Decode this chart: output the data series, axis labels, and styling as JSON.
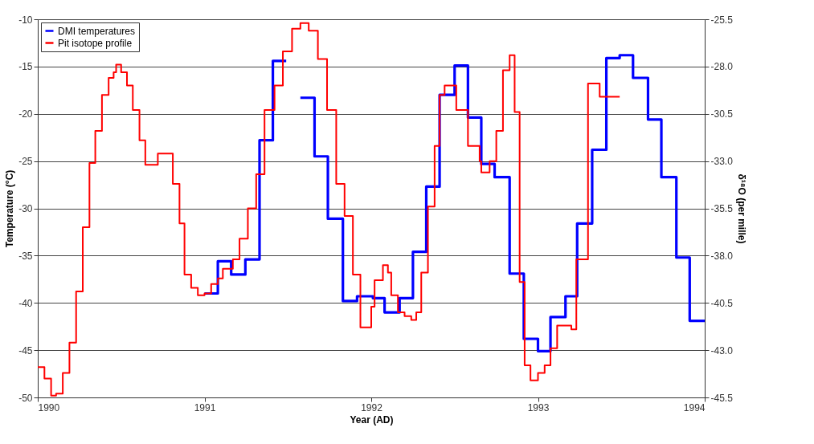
{
  "chart_data": {
    "type": "step",
    "xlabel": "Year (AD)",
    "ylabel": "Temperature (°C)",
    "y2label": "δ¹⁸O (per mille)",
    "xlim": [
      1990,
      1994
    ],
    "xticks": [
      1990,
      1991,
      1992,
      1993,
      1994
    ],
    "ylim": [
      -50,
      -10
    ],
    "yticks": [
      -50,
      -45,
      -40,
      -35,
      -30,
      -25,
      -20,
      -15,
      -10
    ],
    "y2lim": [
      -45.5,
      -25.5
    ],
    "y2ticks": [
      -45.5,
      {
        "value": -43,
        "label": "-43.0"
      },
      -40.5,
      {
        "value": -38,
        "label": "-38.0"
      },
      -35.5,
      {
        "value": -33,
        "label": "-33.0"
      },
      -30.5,
      {
        "value": -28,
        "label": "-28.0"
      },
      -25.5
    ],
    "grid": "y",
    "legend": "top left",
    "series": [
      {
        "name": "DMI temperatures",
        "color": "#0000ff",
        "x": [
          1991.0,
          1991.08,
          1991.16,
          1991.245,
          1991.33,
          1991.41,
          1991.49,
          1991.53,
          1991.575,
          1991.66,
          1991.74,
          1991.83,
          1991.915,
          1992.01,
          1992.08,
          1992.17,
          1992.25,
          1992.33,
          1992.41,
          1992.5,
          1992.58,
          1992.66,
          1992.74,
          1992.83,
          1992.915,
          1993.0,
          1993.075,
          1993.165,
          1993.235,
          1993.325,
          1993.41,
          1993.49,
          1993.57,
          1993.66,
          1993.74,
          1993.83,
          1993.91,
          1994.0
        ],
        "values": [
          -39.0,
          -35.6,
          -37.0,
          -35.4,
          -22.8,
          -14.4,
          -14.4,
          null,
          -18.3,
          -24.5,
          -31.1,
          -39.8,
          -39.3,
          -39.5,
          -41.0,
          -39.5,
          -34.6,
          -27.7,
          -18.0,
          -14.9,
          -20.4,
          -25.3,
          -26.7,
          -36.9,
          -43.8,
          -45.1,
          -41.5,
          -39.3,
          -31.6,
          -23.8,
          -14.1,
          -13.8,
          -16.2,
          -20.6,
          -26.7,
          -35.2,
          -41.9,
          -41.9
        ]
      },
      {
        "name": "Pit isotope profile",
        "color": "#ff0000",
        "axis": "y2",
        "x": [
          1990.0,
          1990.04,
          1990.08,
          1990.11,
          1990.15,
          1990.19,
          1990.23,
          1990.27,
          1990.31,
          1990.345,
          1990.385,
          1990.425,
          1990.455,
          1990.47,
          1990.5,
          1990.535,
          1990.57,
          1990.61,
          1990.645,
          1990.72,
          1990.81,
          1990.85,
          1990.88,
          1990.92,
          1990.96,
          1991.0,
          1991.04,
          1991.08,
          1991.11,
          1991.17,
          1991.21,
          1991.26,
          1991.31,
          1991.36,
          1991.42,
          1991.47,
          1991.525,
          1991.575,
          1991.625,
          1991.68,
          1991.735,
          1991.79,
          1991.84,
          1991.89,
          1991.935,
          1992.0,
          1992.02,
          1992.07,
          1992.1,
          1992.12,
          1992.16,
          1992.2,
          1992.24,
          1992.27,
          1992.3,
          1992.34,
          1992.38,
          1992.41,
          1992.44,
          1992.51,
          1992.58,
          1992.65,
          1992.66,
          1992.71,
          1992.75,
          1992.79,
          1992.83,
          1992.86,
          1992.89,
          1992.92,
          1992.955,
          1993.0,
          1993.04,
          1993.075,
          1993.115,
          1993.2,
          1993.23,
          1993.3,
          1993.37,
          1993.49
        ],
        "values": [
          -43.9,
          -44.5,
          -45.4,
          -45.3,
          -44.2,
          -42.6,
          -39.9,
          -36.5,
          -33.1,
          -31.4,
          -29.5,
          -28.6,
          -28.3,
          -27.9,
          -28.3,
          -29.0,
          -30.3,
          -31.9,
          -33.2,
          -32.6,
          -34.2,
          -36.3,
          -39.0,
          -39.7,
          -40.1,
          -40.0,
          -39.5,
          -39.2,
          -38.7,
          -38.2,
          -37.1,
          -35.5,
          -33.7,
          -30.3,
          -29.0,
          -27.2,
          -26.0,
          -25.7,
          -26.1,
          -27.6,
          -30.3,
          -34.2,
          -35.9,
          -39.0,
          -41.8,
          -40.7,
          -39.3,
          -38.5,
          -38.9,
          -40.1,
          -41.0,
          -41.2,
          -41.4,
          -41.0,
          -38.9,
          -35.4,
          -32.2,
          -29.5,
          -29.0,
          -30.3,
          -32.2,
          -33.0,
          -33.6,
          -33.0,
          -31.4,
          -28.2,
          -27.4,
          -30.4,
          -39.4,
          -43.8,
          -44.6,
          -44.2,
          -43.8,
          -42.9,
          -41.7,
          -41.9,
          -38.2,
          -28.9,
          -29.6,
          -29.6
        ]
      }
    ]
  }
}
